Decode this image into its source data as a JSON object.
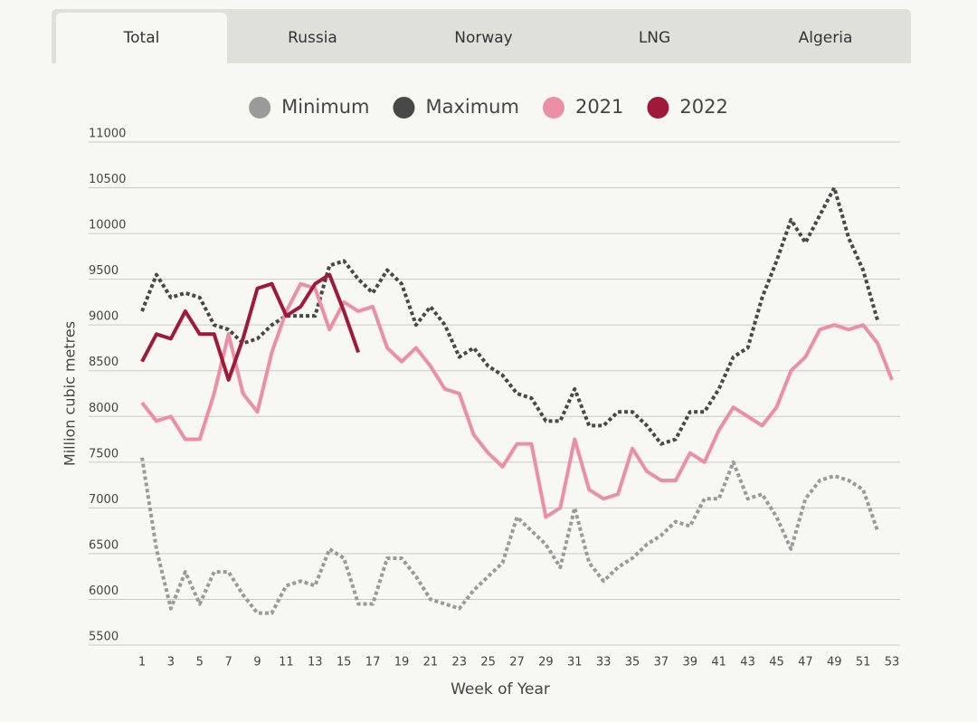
{
  "tabs": [
    "Total",
    "Russia",
    "Norway",
    "LNG",
    "Algeria"
  ],
  "active_tab": 0,
  "chart_data": {
    "type": "line",
    "xlabel": "Week of Year",
    "ylabel": "Million cubic metres",
    "x": [
      1,
      2,
      3,
      4,
      5,
      6,
      7,
      8,
      9,
      10,
      11,
      12,
      13,
      14,
      15,
      16,
      17,
      18,
      19,
      20,
      21,
      22,
      23,
      24,
      25,
      26,
      27,
      28,
      29,
      30,
      31,
      32,
      33,
      34,
      35,
      36,
      37,
      38,
      39,
      40,
      41,
      42,
      43,
      44,
      45,
      46,
      47,
      48,
      49,
      50,
      51,
      52,
      53
    ],
    "xlim": [
      1,
      53
    ],
    "xticks": [
      1,
      3,
      5,
      7,
      9,
      11,
      13,
      15,
      17,
      19,
      21,
      23,
      25,
      27,
      29,
      31,
      33,
      35,
      37,
      39,
      41,
      43,
      45,
      47,
      49,
      51,
      53
    ],
    "ylim": [
      5500,
      11000
    ],
    "yticks": [
      5500,
      6000,
      6500,
      7000,
      7500,
      8000,
      8500,
      9000,
      9500,
      10000,
      10500,
      11000
    ],
    "grid": true,
    "legend": "top",
    "series": [
      {
        "name": "Minimum",
        "color": "#9a9a9a",
        "style": "dotted",
        "values": [
          7550,
          6550,
          5900,
          6300,
          5950,
          6300,
          6300,
          6050,
          5850,
          5850,
          6150,
          6200,
          6150,
          6550,
          6450,
          5950,
          5950,
          6450,
          6450,
          6250,
          6000,
          5950,
          5900,
          6100,
          6250,
          6400,
          6900,
          6750,
          6600,
          6350,
          7000,
          6400,
          6200,
          6350,
          6450,
          6600,
          6700,
          6850,
          6800,
          7100,
          7100,
          7500,
          7100,
          7150,
          6900,
          6550,
          7100,
          7300,
          7350,
          7300,
          7200,
          6750,
          null
        ]
      },
      {
        "name": "Maximum",
        "color": "#484848",
        "style": "dotted",
        "values": [
          9150,
          9550,
          9300,
          9350,
          9300,
          9000,
          8950,
          8800,
          8850,
          9000,
          9100,
          9100,
          9100,
          9650,
          9700,
          9500,
          9350,
          9600,
          9450,
          9000,
          9200,
          9000,
          8650,
          8750,
          8550,
          8450,
          8250,
          8200,
          7950,
          7950,
          8300,
          7900,
          7900,
          8050,
          8050,
          7900,
          7700,
          7750,
          8050,
          8050,
          8300,
          8650,
          8750,
          9300,
          9700,
          10150,
          9900,
          10200,
          10500,
          9950,
          9600,
          9050,
          null
        ]
      },
      {
        "name": "2021",
        "color": "#ec8fa6",
        "style": "solid",
        "values": [
          8150,
          7950,
          8000,
          7750,
          7750,
          8250,
          8900,
          8250,
          8050,
          8700,
          9150,
          9450,
          9400,
          8950,
          9250,
          9150,
          9200,
          8750,
          8600,
          8750,
          8550,
          8300,
          8250,
          7800,
          7600,
          7450,
          7700,
          7700,
          6900,
          7000,
          7750,
          7200,
          7100,
          7150,
          7650,
          7400,
          7300,
          7300,
          7600,
          7500,
          7850,
          8100,
          8000,
          7900,
          8100,
          8500,
          8650,
          8950,
          9000,
          8950,
          9000,
          8800,
          8400
        ]
      },
      {
        "name": "2022",
        "color": "#a0193a",
        "style": "solid",
        "values": [
          8600,
          8900,
          8850,
          9150,
          8900,
          8900,
          8400,
          8850,
          9400,
          9450,
          9100,
          9200,
          9450,
          9550,
          9150,
          8700,
          null,
          null,
          null,
          null,
          null,
          null,
          null,
          null,
          null,
          null,
          null,
          null,
          null,
          null,
          null,
          null,
          null,
          null,
          null,
          null,
          null,
          null,
          null,
          null,
          null,
          null,
          null,
          null,
          null,
          null,
          null,
          null,
          null,
          null,
          null,
          null,
          null
        ]
      }
    ]
  }
}
